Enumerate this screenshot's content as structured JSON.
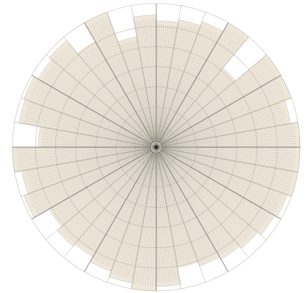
{
  "chart_data": {
    "type": "polar-radial",
    "title": "",
    "xlabel": "",
    "ylabel": "",
    "grid": true,
    "legend": "none",
    "angle_unit": "degrees",
    "angular_ticks": [
      0,
      30,
      60,
      90,
      120,
      150,
      180,
      210,
      240,
      270,
      300,
      330
    ],
    "angular_tick_labels": [
      "",
      "",
      "",
      "",
      "",
      "",
      "",
      "",
      "",
      "",
      "",
      ""
    ],
    "radial_rings": [
      0.15,
      0.28,
      0.42,
      0.56,
      0.7,
      0.84,
      1.0
    ],
    "sectors": [
      {
        "start": 0,
        "end": 10,
        "value": 0.88
      },
      {
        "start": 10,
        "end": 20,
        "value": 0.9
      },
      {
        "start": 20,
        "end": 30,
        "value": 0.93
      },
      {
        "start": 30,
        "end": 40,
        "value": 1.0
      },
      {
        "start": 40,
        "end": 50,
        "value": 0.72
      },
      {
        "start": 50,
        "end": 60,
        "value": 1.0
      },
      {
        "start": 60,
        "end": 70,
        "value": 1.0
      },
      {
        "start": 70,
        "end": 80,
        "value": 0.95
      },
      {
        "start": 80,
        "end": 90,
        "value": 1.0
      },
      {
        "start": 90,
        "end": 100,
        "value": 1.0
      },
      {
        "start": 100,
        "end": 110,
        "value": 1.0
      },
      {
        "start": 110,
        "end": 120,
        "value": 0.97
      },
      {
        "start": 120,
        "end": 130,
        "value": 0.95
      },
      {
        "start": 130,
        "end": 140,
        "value": 0.92
      },
      {
        "start": 140,
        "end": 150,
        "value": 0.9
      },
      {
        "start": 150,
        "end": 160,
        "value": 0.88
      },
      {
        "start": 160,
        "end": 170,
        "value": 0.85
      },
      {
        "start": 170,
        "end": 180,
        "value": 0.97
      },
      {
        "start": 180,
        "end": 190,
        "value": 1.0
      },
      {
        "start": 190,
        "end": 200,
        "value": 0.96
      },
      {
        "start": 200,
        "end": 210,
        "value": 0.92
      },
      {
        "start": 210,
        "end": 220,
        "value": 0.88
      },
      {
        "start": 220,
        "end": 230,
        "value": 0.9
      },
      {
        "start": 230,
        "end": 240,
        "value": 0.86
      },
      {
        "start": 240,
        "end": 250,
        "value": 0.98
      },
      {
        "start": 250,
        "end": 260,
        "value": 0.95
      },
      {
        "start": 260,
        "end": 270,
        "value": 1.0
      },
      {
        "start": 270,
        "end": 280,
        "value": 0.82
      },
      {
        "start": 280,
        "end": 290,
        "value": 0.97
      },
      {
        "start": 290,
        "end": 300,
        "value": 0.98
      },
      {
        "start": 300,
        "end": 310,
        "value": 0.95
      },
      {
        "start": 310,
        "end": 320,
        "value": 0.97
      },
      {
        "start": 320,
        "end": 330,
        "value": 0.85
      },
      {
        "start": 330,
        "end": 340,
        "value": 1.0
      },
      {
        "start": 340,
        "end": 350,
        "value": 0.78
      },
      {
        "start": 350,
        "end": 360,
        "value": 0.92
      }
    ],
    "colors": {
      "background": "#ffffff",
      "sector_fill": "#efe8da",
      "grid": "#b9b4aa",
      "spokes": "#6f6a62",
      "hatch": "#8c877e",
      "center": "#333333"
    }
  }
}
